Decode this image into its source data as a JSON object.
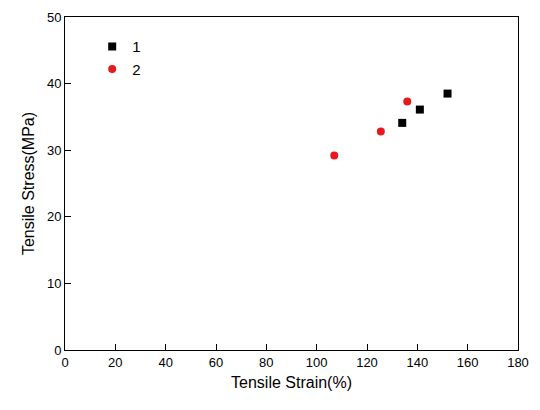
{
  "chart_data": {
    "type": "scatter",
    "x_label": "Tensile Strain(%)",
    "y_label": "Tensile Stress(MPa)",
    "series": [
      {
        "name": "1",
        "color": "#000000",
        "marker": "square",
        "x": [
          134,
          141,
          152
        ],
        "values": [
          34.1,
          36.1,
          38.5
        ]
      },
      {
        "name": "2",
        "color": "#e8191c",
        "marker": "circle",
        "x": [
          107,
          125.5,
          136
        ],
        "values": [
          29.2,
          32.8,
          37.3
        ]
      }
    ],
    "xlim": [
      0,
      180
    ],
    "xticks": [
      0,
      20,
      40,
      60,
      80,
      100,
      120,
      140,
      160,
      180
    ],
    "ylim": [
      0,
      50
    ],
    "yticks": [
      0,
      10,
      20,
      30,
      40,
      50
    ],
    "grid": false,
    "legend": "upper left"
  }
}
